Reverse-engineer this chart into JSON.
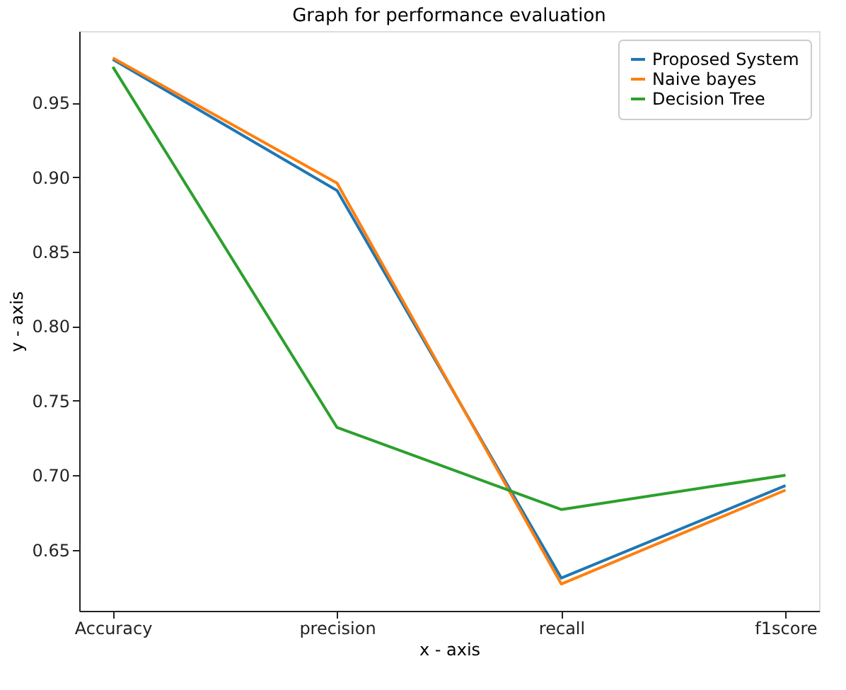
{
  "chart_data": {
    "type": "line",
    "title": "Graph for performance evaluation",
    "xlabel": "x - axis",
    "ylabel": "y - axis",
    "categories": [
      "Accuracy",
      "precision",
      "recall",
      "f1score"
    ],
    "series": [
      {
        "name": "Proposed System",
        "color": "#1f77b4",
        "values": [
          0.979,
          0.891,
          0.631,
          0.693
        ]
      },
      {
        "name": "Naive bayes",
        "color": "#ff7f0e",
        "values": [
          0.98,
          0.896,
          0.627,
          0.69
        ]
      },
      {
        "name": "Decision Tree",
        "color": "#2ca02c",
        "values": [
          0.974,
          0.732,
          0.677,
          0.7
        ]
      }
    ],
    "ylim": [
      0.609,
      0.998
    ],
    "yticks": [
      0.65,
      {
        "value": 0.7,
        "label": "0.70"
      },
      0.75,
      {
        "value": 0.8,
        "label": "0.80"
      },
      0.85,
      {
        "value": 0.9,
        "label": "0.90"
      },
      0.95
    ],
    "grid": false,
    "legend": "top right",
    "marker": "none",
    "line_style": "solid"
  }
}
